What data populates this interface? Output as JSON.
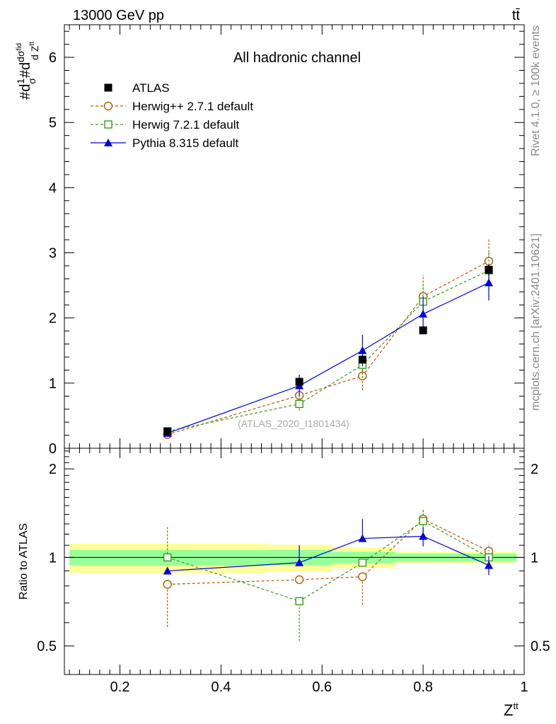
{
  "header": {
    "energy": "13000 GeV pp",
    "process": "tt̄"
  },
  "side_labels": {
    "rivet": "Rivet 4.1.0, ≥ 100k events",
    "mcplots": "mcplots.cern.ch [arXiv:2401.10621]"
  },
  "chart_data": [
    {
      "type": "line",
      "panel": "main",
      "title": "All hadronic channel",
      "watermark": "(ATLAS_2020_I1801434)",
      "xlabel": "Z^{tt}",
      "ylabel": "#d(1/σ)#d(dσ^{fid}/d Z^{tt})",
      "ylim": [
        0,
        6.5
      ],
      "yticks": [
        0,
        1,
        2,
        3,
        4,
        5,
        6
      ],
      "legend_position": "top-left",
      "series": [
        {
          "name": "ATLAS",
          "color": "#000000",
          "marker": "square",
          "x": [
            0.294,
            0.555,
            0.68,
            0.8,
            0.93
          ],
          "values": [
            0.26,
            1.02,
            1.36,
            1.81,
            2.74
          ],
          "err": [
            0.02,
            0.05,
            0.06,
            0.06,
            0.08
          ]
        },
        {
          "name": "Herwig++ 2.7.1 default",
          "color": "#b35c00",
          "marker": "circle",
          "dash": true,
          "x": [
            0.294,
            0.555,
            0.68,
            0.8,
            0.93
          ],
          "values": [
            0.21,
            0.81,
            1.11,
            2.33,
            2.87
          ],
          "err": [
            0.03,
            0.1,
            0.22,
            0.33,
            0.35
          ]
        },
        {
          "name": "Herwig 7.2.1 default",
          "color": "#3a9a1a",
          "marker": "open-square",
          "dash": true,
          "x": [
            0.294,
            0.555,
            0.68,
            0.8,
            0.93
          ],
          "values": [
            0.26,
            0.68,
            1.28,
            2.25,
            2.73
          ],
          "err": [
            0.03,
            0.1,
            0.2,
            0.3,
            0.3
          ]
        },
        {
          "name": "Pythia 8.315 default",
          "color": "#0000dd",
          "marker": "triangle",
          "dash": false,
          "x": [
            0.294,
            0.555,
            0.68,
            0.8,
            0.93
          ],
          "values": [
            0.23,
            0.96,
            1.5,
            2.06,
            2.54
          ],
          "err": [
            0.03,
            0.17,
            0.24,
            0.27,
            0.27
          ]
        }
      ]
    },
    {
      "type": "line",
      "panel": "ratio",
      "xlabel": "Z^{tt}",
      "ylabel": "Ratio to ATLAS",
      "xlim": [
        0.09,
        1.0
      ],
      "xticks": [
        0.2,
        0.4,
        0.6,
        0.8,
        1
      ],
      "ylim": [
        0.4,
        2.35
      ],
      "yticks": [
        0.5,
        1,
        2
      ],
      "ytick_labels": [
        "0.5",
        "1",
        "2"
      ],
      "bands": {
        "edges": [
          0.1,
          0.49,
          0.62,
          0.745,
          0.985
        ],
        "inner": [
          [
            0.94,
            1.06
          ],
          [
            0.94,
            1.06
          ],
          [
            0.955,
            1.045
          ],
          [
            0.97,
            1.03
          ]
        ],
        "outer": [
          [
            0.885,
            1.115
          ],
          [
            0.895,
            1.105
          ],
          [
            0.92,
            1.08
          ],
          [
            0.955,
            1.045
          ]
        ]
      },
      "series": [
        {
          "name": "Herwig++ 2.7.1 default",
          "x": [
            0.294,
            0.555,
            0.68,
            0.8,
            0.93
          ],
          "values": [
            0.81,
            0.84,
            0.86,
            1.35,
            1.05
          ],
          "err_lo": [
            0.23,
            0.0,
            0.17,
            0.11,
            0.06
          ],
          "err_hi": [
            0.0,
            0.0,
            0.0,
            0.11,
            0.06
          ]
        },
        {
          "name": "Herwig 7.2.1 default",
          "x": [
            0.294,
            0.555,
            0.68,
            0.8,
            0.93
          ],
          "values": [
            1.0,
            0.71,
            0.96,
            1.33,
            1.0
          ],
          "err_lo": [
            0.0,
            0.19,
            0.0,
            0.12,
            0.06
          ],
          "err_hi": [
            0.28,
            0.0,
            0.0,
            0.12,
            0.06
          ]
        },
        {
          "name": "Pythia 8.315 default",
          "x": [
            0.294,
            0.555,
            0.68,
            0.8,
            0.93
          ],
          "values": [
            0.9,
            0.96,
            1.16,
            1.18,
            0.94
          ],
          "err_lo": [
            0.0,
            0.0,
            0.0,
            0.09,
            0.07
          ],
          "err_hi": [
            0.0,
            0.14,
            0.19,
            0.09,
            0.07
          ]
        }
      ]
    }
  ]
}
